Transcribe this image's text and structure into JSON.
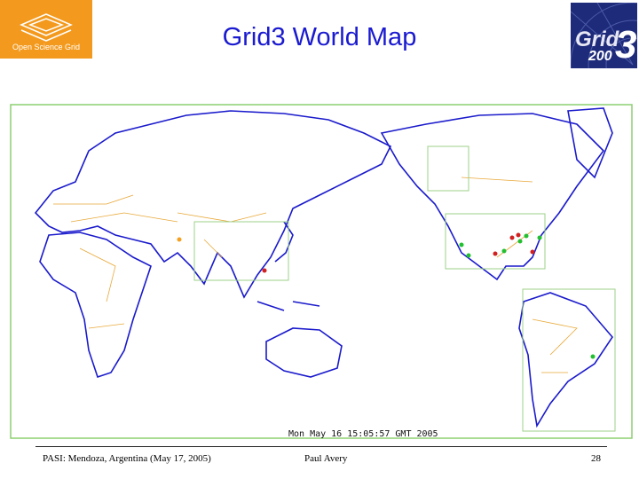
{
  "header": {
    "title": "Grid3 World Map",
    "left_logo": "Open Science Grid",
    "right_logo": [
      "Grid",
      "200",
      "3"
    ]
  },
  "map": {
    "timestamp": "Mon May 16 15:05:57 GMT 2005"
  },
  "footer": {
    "left": "PASI: Mendoza, Argentina (May 17, 2005)",
    "center": "Paul Avery",
    "page": "28"
  }
}
